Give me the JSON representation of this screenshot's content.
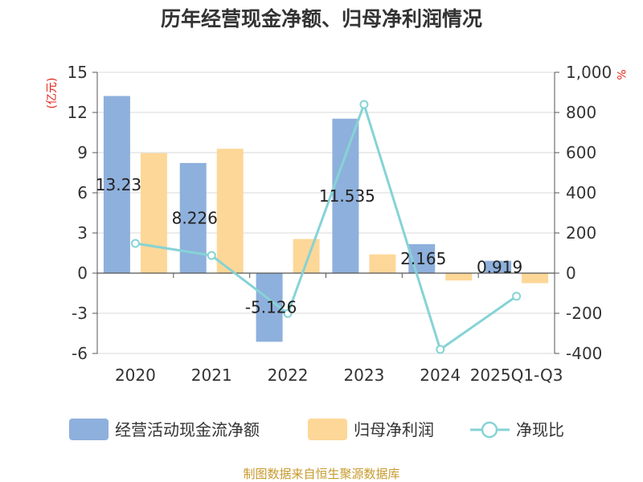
{
  "title": "历年经营现金净额、归母净利润情况",
  "source": "制图数据来自恒生聚源数据库",
  "colors": {
    "operating_cash": "#8eb0dc",
    "net_profit": "#fdd797",
    "ratio": "#86d3d6",
    "axis_unit": "#e1261c"
  },
  "chart_data": {
    "type": "bar",
    "categories": [
      "2020",
      "2021",
      "2022",
      "2023",
      "2024",
      "2025Q1-Q3"
    ],
    "series": [
      {
        "name": "经营活动现金流净额",
        "type": "bar",
        "axis": "left",
        "values": [
          13.23,
          8.226,
          -5.126,
          11.535,
          2.165,
          0.919
        ],
        "labels": [
          "13.23",
          "8.226",
          "-5.126",
          "11.535",
          "2.165",
          "0.919"
        ]
      },
      {
        "name": "归母净利润",
        "type": "bar",
        "axis": "left",
        "values": [
          8.96,
          9.29,
          2.55,
          1.4,
          -0.55,
          -0.75
        ]
      },
      {
        "name": "净现比",
        "type": "line",
        "axis": "right",
        "values": [
          148,
          88,
          -201,
          840,
          -380,
          -115
        ]
      }
    ],
    "y_left": {
      "unit": "(亿元)",
      "ylim": [
        -6,
        15
      ],
      "ticks": [
        -6,
        -3,
        0,
        3,
        6,
        9,
        12,
        15
      ],
      "tick_labels": [
        "-6",
        "-3",
        "0",
        "3",
        "6",
        "9",
        "12",
        "15"
      ]
    },
    "y_right": {
      "unit": "%",
      "ylim": [
        -400,
        1000
      ],
      "ticks": [
        -400,
        -200,
        0,
        200,
        400,
        600,
        800,
        1000
      ],
      "tick_labels": [
        "-400",
        "-200",
        "0",
        "200",
        "400",
        "600",
        "800",
        "1,000"
      ]
    },
    "grid": true,
    "legend": "bottom"
  }
}
